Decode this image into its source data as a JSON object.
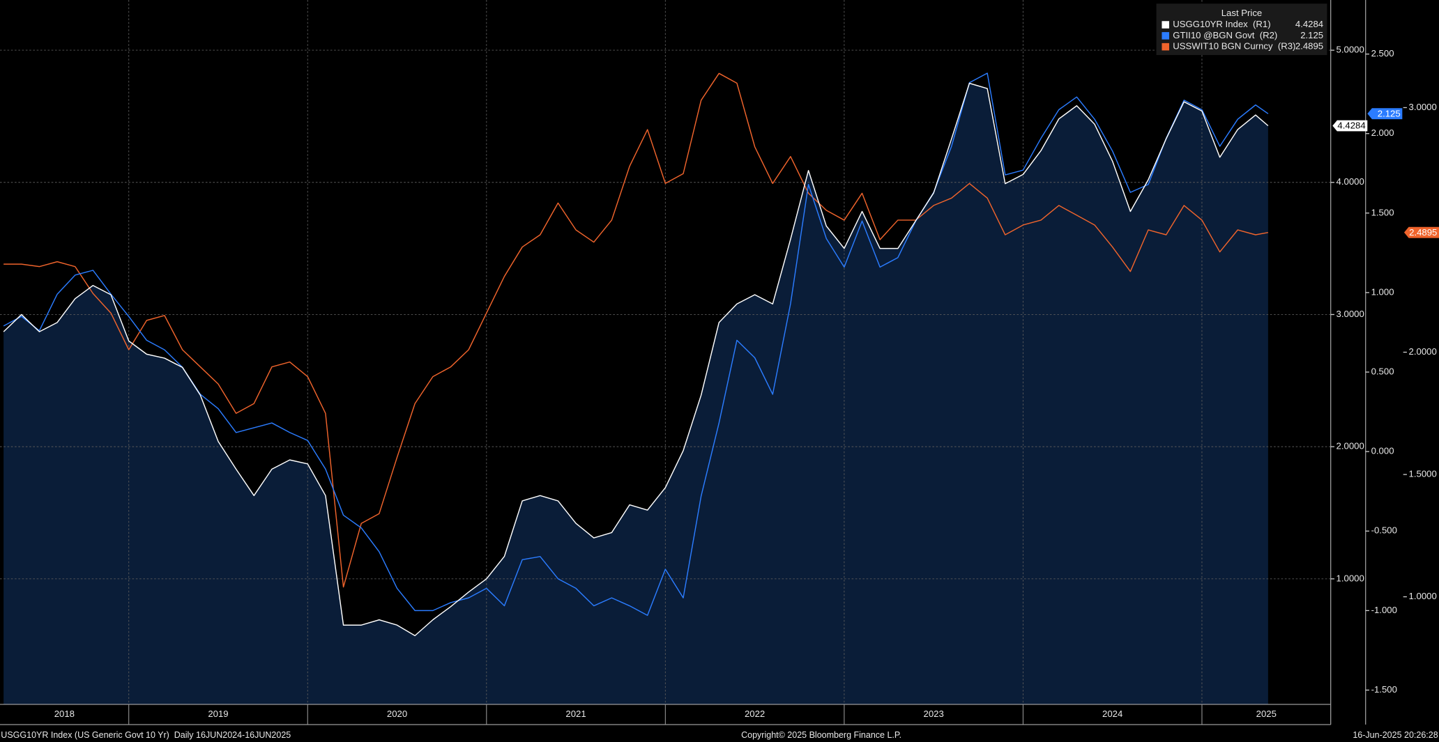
{
  "chart_data": {
    "type": "line",
    "legend_title": "Last Price",
    "legend": "top-right",
    "background": "#000000",
    "grid": true,
    "xlim": [
      2018.28,
      2025.72
    ],
    "xticks": [
      {
        "value": 2018,
        "label": "2018"
      },
      {
        "value": 2019,
        "label": "2019"
      },
      {
        "value": 2020,
        "label": "2020"
      },
      {
        "value": 2021,
        "label": "2021"
      },
      {
        "value": 2022,
        "label": "2022"
      },
      {
        "value": 2023,
        "label": "2023"
      },
      {
        "value": 2024,
        "label": "2024"
      },
      {
        "value": 2025,
        "label": "2025"
      }
    ],
    "ylim": [
      0.05,
      5.38
    ],
    "yticks": [
      {
        "value": 1,
        "label": "1.0000"
      },
      {
        "value": 2,
        "label": "2.0000"
      },
      {
        "value": 3,
        "label": "3.0000"
      },
      {
        "value": 4,
        "label": "4.0000"
      },
      {
        "value": 5,
        "label": "5.0000"
      }
    ],
    "y2lim": [
      -1.59,
      2.84
    ],
    "y2ticks": [
      {
        "value": -1.5,
        "label": "-1.500"
      },
      {
        "value": -1,
        "label": "-1.000"
      },
      {
        "value": -0.5,
        "label": "-0.500"
      },
      {
        "value": 0,
        "label": "0.000"
      },
      {
        "value": 0.5,
        "label": "0.500"
      },
      {
        "value": 1,
        "label": "1.000"
      },
      {
        "value": 1.5,
        "label": "1.500"
      },
      {
        "value": 2,
        "label": "2.000"
      },
      {
        "value": 2.5,
        "label": "2.500"
      }
    ],
    "y3lim": [
      0.56,
      3.44
    ],
    "y3ticks": [
      {
        "value": 1,
        "label": "1.0000"
      },
      {
        "value": 1.5,
        "label": "1.5000"
      },
      {
        "value": 2,
        "label": "2.0000"
      },
      {
        "value": 3,
        "label": "3.0000"
      }
    ],
    "x": [
      2018.3,
      2018.4,
      2018.5,
      2018.6,
      2018.7,
      2018.8,
      2018.9,
      2019.0,
      2019.1,
      2019.2,
      2019.3,
      2019.4,
      2019.5,
      2019.6,
      2019.7,
      2019.8,
      2019.9,
      2020.0,
      2020.1,
      2020.2,
      2020.3,
      2020.4,
      2020.5,
      2020.6,
      2020.7,
      2020.8,
      2020.9,
      2021.0,
      2021.1,
      2021.2,
      2021.3,
      2021.4,
      2021.5,
      2021.6,
      2021.7,
      2021.8,
      2021.9,
      2022.0,
      2022.1,
      2022.2,
      2022.3,
      2022.4,
      2022.5,
      2022.6,
      2022.7,
      2022.8,
      2022.9,
      2023.0,
      2023.1,
      2023.2,
      2023.3,
      2023.4,
      2023.5,
      2023.6,
      2023.7,
      2023.8,
      2023.9,
      2024.0,
      2024.1,
      2024.2,
      2024.3,
      2024.4,
      2024.5,
      2024.6,
      2024.7,
      2024.8,
      2024.9,
      2025.0,
      2025.1,
      2025.2,
      2025.3,
      2025.37
    ],
    "series": [
      {
        "name": "USGG10YR Index  (R1)",
        "color": "#ffffff",
        "fill": "#0a1d38",
        "axis": "y",
        "values": [
          2.87,
          3.0,
          2.87,
          2.94,
          3.12,
          3.22,
          3.15,
          2.8,
          2.7,
          2.67,
          2.6,
          2.39,
          2.04,
          1.83,
          1.63,
          1.83,
          1.9,
          1.87,
          1.63,
          0.65,
          0.65,
          0.69,
          0.65,
          0.57,
          0.69,
          0.79,
          0.9,
          1.0,
          1.17,
          1.59,
          1.63,
          1.59,
          1.42,
          1.31,
          1.35,
          1.56,
          1.52,
          1.69,
          1.97,
          2.39,
          2.94,
          3.08,
          3.15,
          3.08,
          3.57,
          4.09,
          3.67,
          3.5,
          3.78,
          3.5,
          3.5,
          3.71,
          3.92,
          4.33,
          4.75,
          4.71,
          3.99,
          4.06,
          4.24,
          4.48,
          4.58,
          4.44,
          4.16,
          3.78,
          4.02,
          4.33,
          4.61,
          4.54,
          4.19,
          4.4,
          4.51,
          4.4284
        ]
      },
      {
        "name": "GTII10 @BGN Govt  (R2)",
        "color": "#2b7cff",
        "axis": "y2",
        "values": [
          0.79,
          0.85,
          0.76,
          0.99,
          1.11,
          1.14,
          0.99,
          0.85,
          0.7,
          0.64,
          0.53,
          0.36,
          0.27,
          0.12,
          0.15,
          0.18,
          0.12,
          0.07,
          -0.11,
          -0.4,
          -0.48,
          -0.63,
          -0.86,
          -1.0,
          -1.0,
          -0.95,
          -0.92,
          -0.86,
          -0.97,
          -0.68,
          -0.66,
          -0.8,
          -0.86,
          -0.97,
          -0.92,
          -0.97,
          -1.03,
          -0.74,
          -0.92,
          -0.28,
          0.18,
          0.7,
          0.59,
          0.36,
          0.93,
          1.68,
          1.34,
          1.16,
          1.45,
          1.16,
          1.22,
          1.45,
          1.63,
          1.92,
          2.32,
          2.38,
          1.74,
          1.77,
          1.97,
          2.15,
          2.23,
          2.09,
          1.89,
          1.63,
          1.68,
          1.97,
          2.21,
          2.15,
          1.92,
          2.09,
          2.18,
          2.125
        ]
      },
      {
        "name": "USSWIT10 BGN Curncy  (R3)",
        "color": "#f0642c",
        "axis": "y3",
        "values": [
          2.36,
          2.36,
          2.35,
          2.37,
          2.35,
          2.24,
          2.16,
          2.01,
          2.13,
          2.15,
          2.01,
          1.94,
          1.87,
          1.75,
          1.79,
          1.94,
          1.96,
          1.9,
          1.75,
          1.04,
          1.3,
          1.34,
          1.57,
          1.79,
          1.9,
          1.94,
          2.01,
          2.16,
          2.31,
          2.43,
          2.48,
          2.61,
          2.5,
          2.45,
          2.54,
          2.76,
          2.91,
          2.69,
          2.73,
          3.03,
          3.14,
          3.1,
          2.84,
          2.69,
          2.8,
          2.65,
          2.58,
          2.54,
          2.65,
          2.46,
          2.54,
          2.54,
          2.6,
          2.63,
          2.69,
          2.63,
          2.48,
          2.52,
          2.54,
          2.6,
          2.56,
          2.52,
          2.43,
          2.33,
          2.5,
          2.48,
          2.6,
          2.54,
          2.41,
          2.5,
          2.48,
          2.4895
        ]
      }
    ],
    "footnote": "USGG10YR Index (US Generic Govt 10 Yr)  Daily 16JUN2024-16JUN2025",
    "copyright": "Copyright© 2025 Bloomberg Finance L.P.",
    "timestamp": "16-Jun-2025 20:26:28"
  }
}
